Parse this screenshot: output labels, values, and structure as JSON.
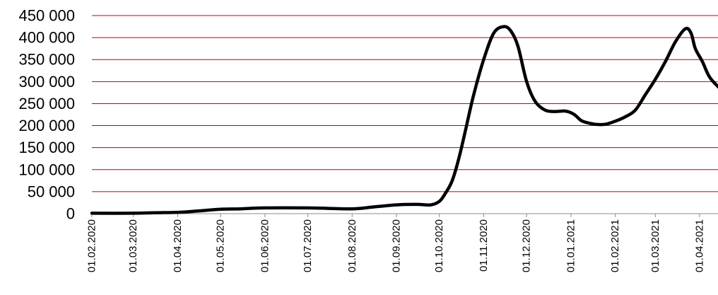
{
  "chart_data": {
    "type": "line",
    "title": "",
    "xlabel": "",
    "ylabel": "",
    "ylim": [
      0,
      450000
    ],
    "y_ticks": [
      0,
      50000,
      100000,
      150000,
      200000,
      250000,
      300000,
      350000,
      400000,
      450000
    ],
    "y_tick_labels": [
      "0",
      "50 000",
      "100 000",
      "150 000",
      "200 000",
      "250 000",
      "300 000",
      "350 000",
      "400 000",
      "450 000"
    ],
    "x_tick_labels": [
      "01.02.2020",
      "01.03.2020",
      "01.04.2020",
      "01.05.2020",
      "01.06.2020",
      "01.07.2020",
      "01.08.2020",
      "01.09.2020",
      "01.10.2020",
      "01.11.2020",
      "01.12.2020",
      "01.01.2021",
      "01.02.2021",
      "01.03.2021",
      "01.04.2021"
    ],
    "grid": true,
    "legend": "none",
    "colors": {
      "line": "#000000",
      "grid": "#c00000"
    },
    "series": [
      {
        "x": [
          "2020-02-01",
          "2020-03-01",
          "2020-03-15",
          "2020-04-01",
          "2020-04-15",
          "2020-05-01",
          "2020-05-15",
          "2020-06-01",
          "2020-07-01",
          "2020-08-01",
          "2020-08-15",
          "2020-09-01",
          "2020-09-15",
          "2020-09-25",
          "2020-10-01",
          "2020-10-05",
          "2020-10-10",
          "2020-10-15",
          "2020-10-20",
          "2020-10-25",
          "2020-11-01",
          "2020-11-08",
          "2020-11-15",
          "2020-11-20",
          "2020-11-25",
          "2020-12-01",
          "2020-12-07",
          "2020-12-14",
          "2020-12-21",
          "2020-12-28",
          "2021-01-03",
          "2021-01-08",
          "2021-01-12",
          "2021-01-18",
          "2021-01-25",
          "2021-02-01",
          "2021-02-08",
          "2021-02-15",
          "2021-02-22",
          "2021-03-01",
          "2021-03-08",
          "2021-03-15",
          "2021-03-22",
          "2021-03-26",
          "2021-03-29",
          "2021-04-03",
          "2021-04-08",
          "2021-04-15"
        ],
        "values": [
          1000,
          1000,
          2000,
          3000,
          6000,
          10000,
          11000,
          13000,
          13000,
          11000,
          15000,
          20000,
          21000,
          20000,
          28000,
          45000,
          75000,
          130000,
          200000,
          270000,
          350000,
          410000,
          425000,
          415000,
          380000,
          300000,
          255000,
          235000,
          232000,
          233000,
          226000,
          212000,
          207000,
          203000,
          203000,
          210000,
          220000,
          235000,
          270000,
          305000,
          345000,
          390000,
          420000,
          410000,
          375000,
          345000,
          310000,
          285000
        ]
      }
    ]
  }
}
